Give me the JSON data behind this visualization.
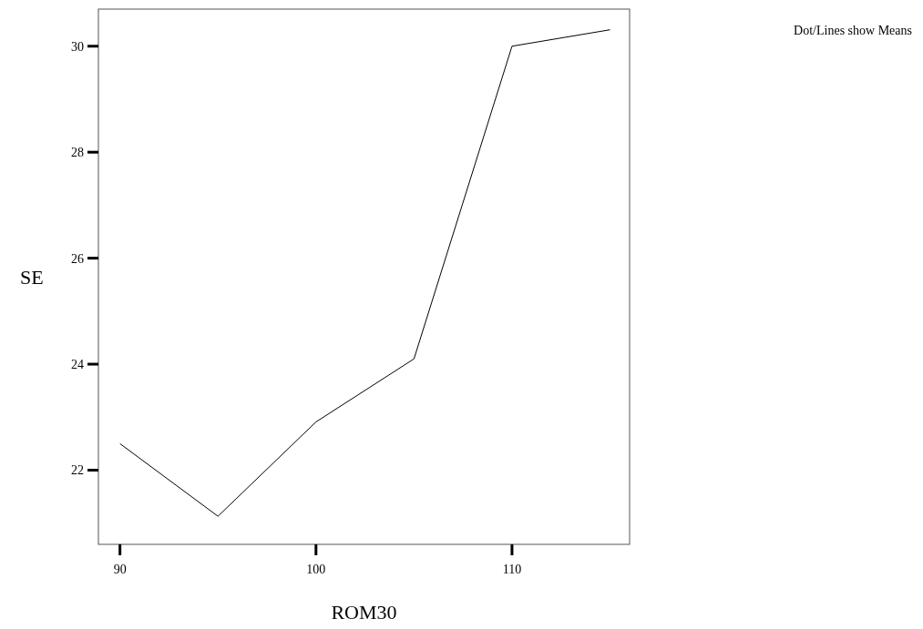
{
  "chart_data": {
    "type": "line",
    "xlabel": "ROM30",
    "ylabel": "SE",
    "annotations": [
      "Dot/Lines show Means"
    ],
    "x": [
      90,
      95,
      100,
      105,
      110,
      115
    ],
    "series": [
      {
        "color": "#000000",
        "values": [
          22.5,
          21.13,
          22.91,
          24.1,
          30.0,
          30.31
        ]
      }
    ],
    "xlim": [
      88.9,
      116
    ],
    "xticks": [
      90,
      100,
      110
    ],
    "ylim": [
      20.6,
      30.7
    ],
    "yticks": [
      22,
      24,
      26,
      28,
      30
    ],
    "grid": false,
    "marker": "none",
    "line_style": "solid"
  }
}
